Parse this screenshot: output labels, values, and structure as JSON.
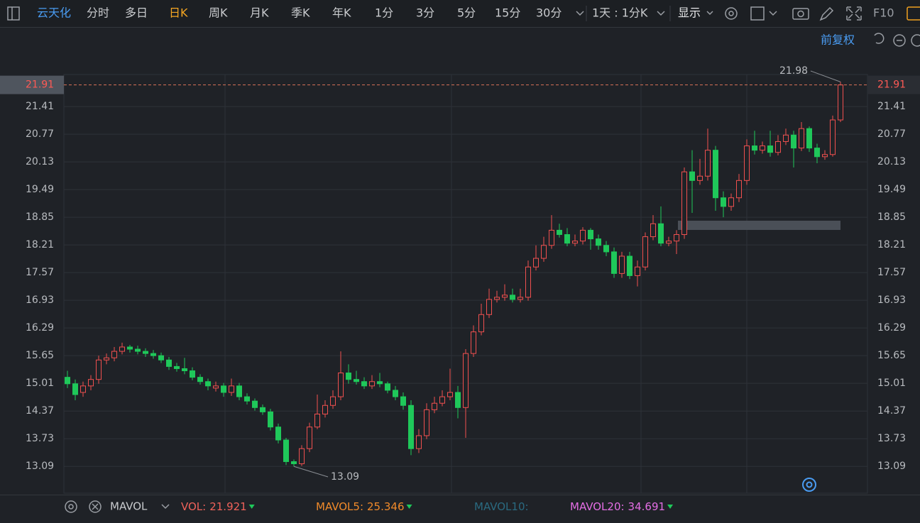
{
  "toolbar": {
    "stock": "云天化",
    "tabs": [
      "分时",
      "多日",
      "日K",
      "周K",
      "月K",
      "季K",
      "年K",
      "1分",
      "3分",
      "5分",
      "15分",
      "30分"
    ],
    "active_tab": 2,
    "period": "1天 : 1分K",
    "display": "显示",
    "f10": "F10"
  },
  "adjust": "前复权",
  "chart_data": {
    "type": "candlestick",
    "open": [
      15.15,
      15.0,
      14.8,
      14.95,
      15.1,
      15.55,
      15.6,
      15.75,
      15.85,
      15.8,
      15.75,
      15.7,
      15.65,
      15.55,
      15.4,
      15.35,
      15.3,
      15.15,
      15.05,
      14.9,
      14.95,
      14.8,
      14.95,
      14.7,
      14.6,
      14.45,
      14.35,
      14.0,
      13.7,
      13.2,
      13.15,
      13.5,
      14.0,
      14.3,
      14.5,
      14.7,
      15.25,
      15.1,
      15.05,
      14.95,
      15.05,
      15.0,
      14.85,
      14.7,
      14.5,
      13.5,
      13.8,
      14.4,
      14.55,
      14.7,
      14.8,
      14.45,
      15.7,
      16.2,
      16.6,
      16.95,
      17.0,
      17.05,
      16.95,
      17.0,
      17.7,
      17.9,
      18.2,
      18.55,
      18.45,
      18.25,
      18.3,
      18.55,
      18.35,
      18.2,
      18.05,
      17.55,
      17.95,
      17.5,
      17.7,
      18.4,
      18.7,
      18.25,
      18.3,
      18.45,
      19.9,
      19.7,
      19.8,
      20.4,
      19.3,
      19.1,
      19.3,
      19.7,
      20.5,
      20.4,
      20.5,
      20.35,
      20.6,
      20.75,
      20.45,
      20.9,
      20.45,
      20.25,
      20.3,
      21.1
    ],
    "high": [
      15.3,
      15.1,
      15.05,
      15.2,
      15.65,
      15.7,
      15.85,
      15.95,
      15.9,
      15.88,
      15.82,
      15.78,
      15.72,
      15.62,
      15.48,
      15.6,
      15.38,
      15.22,
      15.12,
      15.05,
      15.02,
      15.12,
      15.02,
      14.78,
      14.66,
      14.52,
      14.42,
      14.08,
      13.75,
      13.25,
      13.58,
      14.1,
      14.75,
      14.62,
      14.85,
      15.75,
      15.45,
      15.3,
      15.15,
      15.2,
      15.25,
      15.05,
      14.95,
      14.8,
      14.62,
      13.95,
      14.55,
      14.7,
      14.85,
      15.35,
      14.95,
      15.8,
      16.35,
      16.85,
      17.2,
      17.15,
      17.3,
      17.2,
      17.2,
      17.85,
      18.2,
      18.4,
      18.9,
      18.7,
      18.6,
      18.45,
      18.62,
      18.6,
      18.45,
      18.3,
      18.15,
      18.05,
      18.05,
      17.85,
      18.5,
      18.9,
      19.1,
      18.4,
      18.55,
      20.0,
      20.4,
      20.2,
      20.9,
      20.5,
      19.45,
      19.4,
      19.85,
      20.65,
      20.85,
      20.6,
      20.85,
      20.75,
      20.9,
      20.85,
      21.05,
      20.95,
      20.55,
      20.4,
      21.2,
      21.98
    ],
    "low": [
      14.9,
      14.62,
      14.7,
      14.85,
      15.0,
      15.45,
      15.52,
      15.68,
      15.72,
      15.68,
      15.62,
      15.58,
      15.48,
      15.32,
      15.28,
      15.22,
      15.08,
      14.98,
      14.85,
      14.82,
      14.7,
      14.72,
      14.62,
      14.52,
      14.38,
      14.28,
      13.92,
      13.62,
      13.12,
      13.09,
      13.1,
      13.42,
      13.95,
      14.22,
      14.42,
      14.62,
      15.0,
      14.98,
      14.88,
      14.88,
      14.92,
      14.78,
      14.62,
      14.4,
      13.35,
      13.4,
      13.72,
      14.32,
      14.48,
      14.62,
      14.2,
      13.75,
      15.62,
      16.12,
      16.52,
      16.88,
      16.92,
      16.88,
      16.88,
      16.92,
      17.62,
      17.82,
      18.12,
      18.38,
      18.18,
      18.18,
      18.22,
      18.1,
      18.1,
      17.95,
      17.45,
      17.45,
      17.42,
      17.25,
      17.62,
      18.32,
      18.18,
      18.18,
      18.0,
      18.35,
      18.95,
      19.6,
      19.7,
      19.0,
      18.85,
      19.0,
      19.2,
      19.6,
      20.3,
      20.32,
      20.25,
      20.28,
      20.52,
      20.0,
      20.38,
      20.36,
      20.1,
      20.18,
      20.25,
      21.05
    ],
    "close": [
      15.0,
      14.75,
      14.95,
      15.1,
      15.55,
      15.6,
      15.75,
      15.85,
      15.8,
      15.75,
      15.7,
      15.65,
      15.55,
      15.4,
      15.35,
      15.3,
      15.15,
      15.05,
      14.95,
      14.95,
      14.8,
      14.95,
      14.7,
      14.6,
      14.45,
      14.35,
      14.0,
      13.7,
      13.2,
      13.15,
      13.5,
      14.0,
      14.3,
      14.5,
      14.7,
      15.25,
      15.1,
      15.05,
      14.95,
      15.05,
      15.0,
      14.85,
      14.7,
      14.5,
      13.5,
      13.8,
      14.4,
      14.55,
      14.7,
      14.8,
      14.45,
      15.7,
      16.2,
      16.6,
      16.95,
      17.0,
      17.05,
      16.95,
      17.0,
      17.7,
      17.9,
      18.2,
      18.55,
      18.45,
      18.25,
      18.3,
      18.55,
      18.35,
      18.2,
      18.05,
      17.55,
      17.95,
      17.5,
      17.7,
      18.4,
      18.7,
      18.25,
      18.3,
      18.45,
      19.9,
      19.7,
      19.8,
      20.4,
      19.3,
      19.1,
      19.3,
      19.7,
      20.5,
      20.4,
      20.5,
      20.35,
      20.6,
      20.75,
      20.45,
      20.9,
      20.45,
      20.25,
      20.3,
      21.1,
      21.91
    ],
    "up_color": "#f0504f",
    "down_color": "#1fc85a",
    "ylim": [
      12.47,
      22.15
    ],
    "yticks": [
      13.09,
      13.73,
      14.37,
      15.01,
      15.65,
      16.29,
      16.93,
      17.57,
      18.21,
      18.85,
      19.49,
      20.13,
      20.77,
      21.41
    ],
    "grid": true
  },
  "indicator": {
    "name": "MAVOL",
    "items": [
      {
        "label": "VOL:",
        "value": 21.921,
        "color": "#f0625a"
      },
      {
        "label": "MAVOL5:",
        "value": 25.346,
        "color": "#f08a2a"
      },
      {
        "label": "MAVOL10:",
        "color": "#2a6a80"
      },
      {
        "label": "MAVOL20:",
        "value": 34.691,
        "color": "#e46ee4"
      }
    ]
  }
}
